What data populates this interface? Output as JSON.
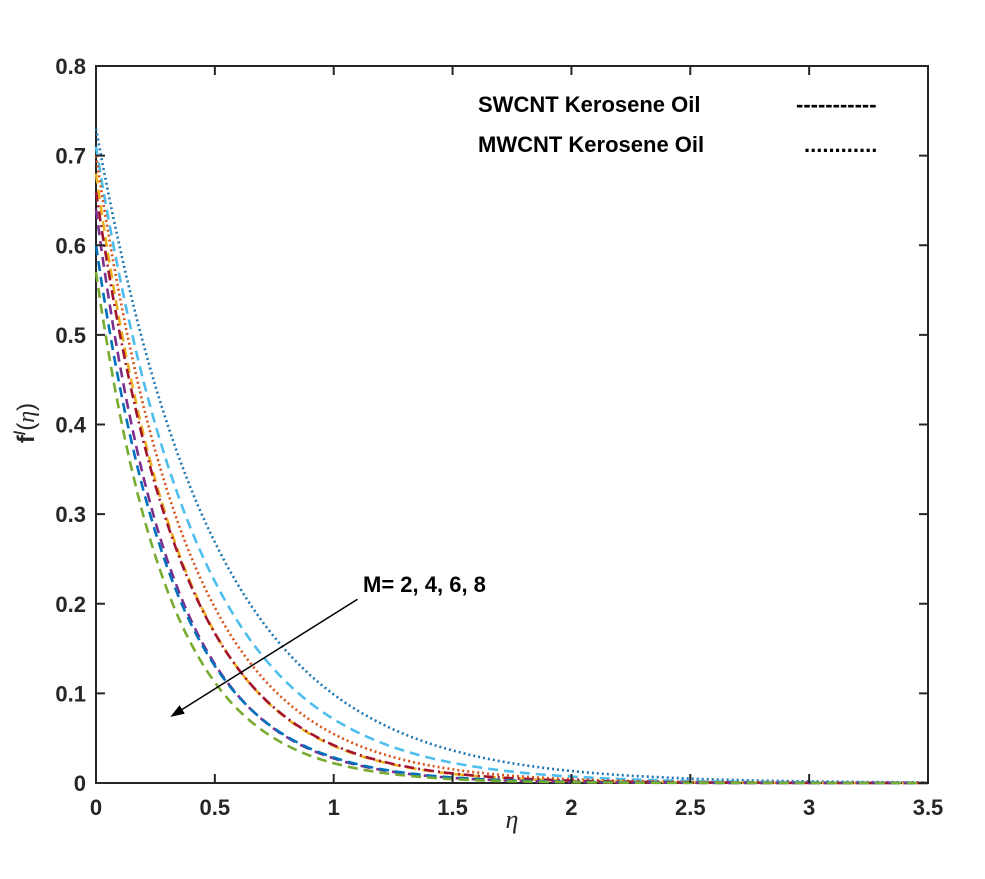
{
  "chart_data": {
    "type": "line",
    "title": "",
    "xlabel": "η",
    "ylabel": {
      "base": "f",
      "prime": "/",
      "open": "(",
      "var": "η",
      "close": ")"
    },
    "xlim": [
      0,
      3.5
    ],
    "ylim": [
      0,
      0.8
    ],
    "xticks": [
      0,
      0.5,
      1,
      1.5,
      2,
      2.5,
      3,
      3.5
    ],
    "xtick_labels": [
      "0",
      "0.5",
      "1",
      "1.5",
      "2",
      "2.5",
      "3",
      "3.5"
    ],
    "yticks": [
      0,
      0.1,
      0.2,
      0.3,
      0.4,
      0.5,
      0.6,
      0.7,
      0.8
    ],
    "ytick_labels": [
      "0",
      "0.1",
      "0.2",
      "0.3",
      "0.4",
      "0.5",
      "0.6",
      "0.7",
      "0.8"
    ],
    "grid": false,
    "legend": {
      "placement": "top-right",
      "entries": [
        {
          "label": "SWCNT Kerosene Oil",
          "marker_text": "-----------"
        },
        {
          "label": "MWCNT Kerosene Oil",
          "marker_text": "............"
        }
      ]
    },
    "annotation": {
      "text": "M= 2, 4, 6, 8",
      "arrow_from": [
        1.1,
        0.205
      ],
      "arrow_to": [
        0.32,
        0.075
      ]
    },
    "series": [
      {
        "name": "MWCNT M=2",
        "style": "dotted",
        "color": "#1f77b4",
        "f0": 0.73,
        "decay": 2.0
      },
      {
        "name": "SWCNT M=2",
        "style": "dashed",
        "color": "#4dbeee",
        "f0": 0.71,
        "decay": 2.3
      },
      {
        "name": "MWCNT M=4",
        "style": "dotted",
        "color": "#d95319",
        "f0": 0.7,
        "decay": 2.55
      },
      {
        "name": "SWCNT M=4",
        "style": "dashed",
        "color": "#edb120",
        "f0": 0.68,
        "decay": 2.8
      },
      {
        "name": "MWCNT M=6",
        "style": "dashdot",
        "color": "#a2142f",
        "f0": 0.66,
        "decay": 2.75
      },
      {
        "name": "SWCNT M=6",
        "style": "dashed",
        "color": "#7e2f8e",
        "f0": 0.64,
        "decay": 3.15
      },
      {
        "name": "MWCNT M=8",
        "style": "dashed",
        "color": "#0072bd",
        "f0": 0.6,
        "decay": 3.05
      },
      {
        "name": "SWCNT M=8",
        "style": "dashed",
        "color": "#77ac30",
        "f0": 0.57,
        "decay": 3.25
      }
    ]
  }
}
